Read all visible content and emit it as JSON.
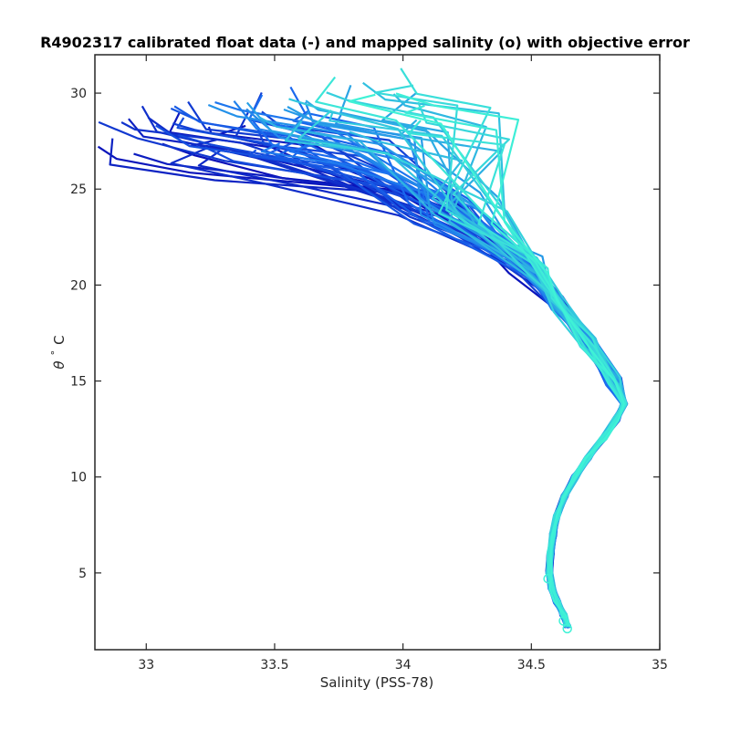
{
  "chart_data": {
    "type": "line",
    "title": "R4902317 calibrated float data (-) and mapped salinity (o) with objective error",
    "xlabel": "Salinity (PSS-78)",
    "ylabel_symbol": "θ",
    "ylabel_degree": "°",
    "ylabel_unit": "C",
    "xlim": [
      32.8,
      35.0
    ],
    "ylim": [
      1.0,
      32.0
    ],
    "xticks": [
      33,
      33.5,
      34,
      34.5,
      35
    ],
    "xtick_labels": [
      "33",
      "33.5",
      "34",
      "34.5",
      "35"
    ],
    "yticks": [
      5,
      10,
      15,
      20,
      25,
      30
    ],
    "ytick_labels": [
      "5",
      "10",
      "15",
      "20",
      "25",
      "30"
    ],
    "grid": false,
    "legend": "none",
    "colormap": "dark blue (early profiles) to cyan (late profiles)",
    "colors": {
      "start": "#0a10b8",
      "mid": "#1a6cf0",
      "end": "#3ff2d6",
      "axis": "#262626"
    },
    "profile_count": 70,
    "deep_profile": {
      "description": "shared deep section of all profiles (salinity, theta)",
      "points": [
        [
          34.86,
          13.8
        ],
        [
          34.83,
          13.0
        ],
        [
          34.78,
          12.0
        ],
        [
          34.72,
          11.0
        ],
        [
          34.67,
          10.0
        ],
        [
          34.63,
          9.0
        ],
        [
          34.6,
          8.0
        ],
        [
          34.585,
          7.0
        ],
        [
          34.575,
          6.0
        ],
        [
          34.57,
          5.0
        ],
        [
          34.58,
          4.2
        ],
        [
          34.6,
          3.5
        ],
        [
          34.625,
          2.8
        ],
        [
          34.64,
          2.2
        ]
      ]
    },
    "mapped_markers": [
      {
        "salinity": 34.565,
        "theta": 4.7
      },
      {
        "salinity": 34.625,
        "theta": 2.5
      },
      {
        "salinity": 34.64,
        "theta": 2.1
      }
    ]
  }
}
